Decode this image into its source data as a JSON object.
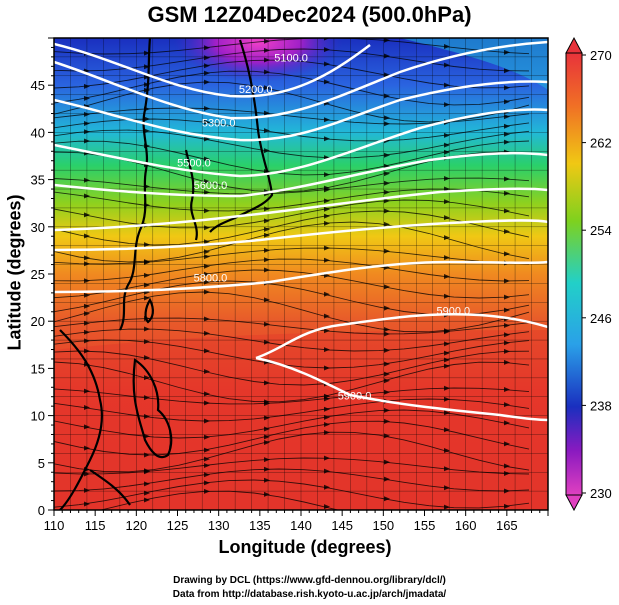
{
  "title": "GSM 12Z04Dec2024 (500.0hPa)",
  "xlabel": "Longitude (degrees)",
  "ylabel": "Latitude  (degrees)",
  "credits": [
    "Drawing by DCL (https://www.gfd-dennou.org/library/dcl/)",
    "Data from http://database.rish.kyoto-u.ac.jp/arch/jmadata/"
  ],
  "xticks": [
    "110",
    "115",
    "120",
    "125",
    "130",
    "135",
    "140",
    "145",
    "150",
    "155",
    "160",
    "165"
  ],
  "yticks": [
    "0",
    "5",
    "10",
    "15",
    "20",
    "25",
    "30",
    "35",
    "40",
    "45"
  ],
  "colorbar": {
    "ticks": [
      "270",
      "262",
      "254",
      "246",
      "238",
      "230"
    ]
  },
  "contour_labels": [
    {
      "text": "5100.0",
      "lon": 138.8,
      "lat": 47.5
    },
    {
      "text": "5200.0",
      "lon": 134.5,
      "lat": 44.2
    },
    {
      "text": "5300.0",
      "lon": 130.0,
      "lat": 40.6
    },
    {
      "text": "5500.0",
      "lon": 127.0,
      "lat": 36.4
    },
    {
      "text": "5600.0",
      "lon": 129.0,
      "lat": 34.0
    },
    {
      "text": "5800.0",
      "lon": 129.0,
      "lat": 24.2
    },
    {
      "text": "5900.0",
      "lon": 158.5,
      "lat": 20.7
    },
    {
      "text": "5900.0",
      "lon": 146.5,
      "lat": 11.7
    }
  ],
  "colors": {
    "bar_top": "#e8333b",
    "bar_bottom": "#e040c0"
  },
  "map_data": {
    "projection": "equirectangular",
    "lon_range": [
      110,
      170
    ],
    "lat_range": [
      0,
      50
    ],
    "field": "temperature (K), 500 hPa, shaded",
    "overlays": [
      "geopotential height contours (white)",
      "wind streamlines (black)",
      "coastlines",
      "1-degree grid"
    ]
  }
}
